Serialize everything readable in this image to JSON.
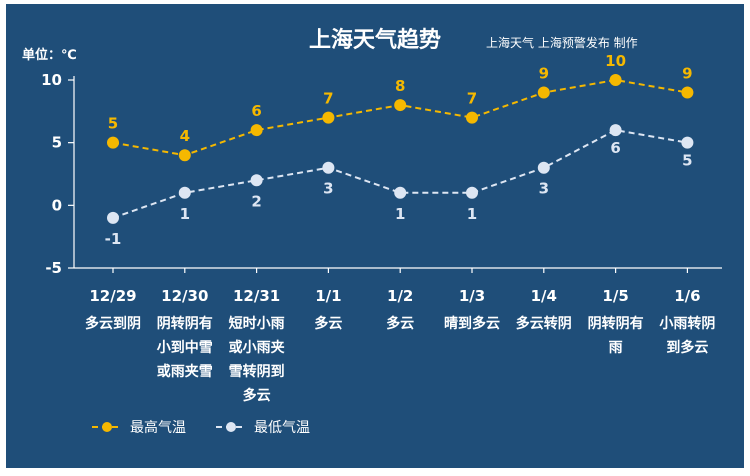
{
  "header": {
    "title": "上海天气趋势",
    "credit": "上海天气  上海预警发布 制作",
    "unit": "单位：℃"
  },
  "chart_data": {
    "type": "line",
    "title": "上海天气趋势",
    "ylabel": "单位：℃",
    "ylim": [
      -5,
      10
    ],
    "yticks": [
      -5,
      0,
      5,
      10
    ],
    "categories": [
      "12/29",
      "12/30",
      "12/31",
      "1/1",
      "1/2",
      "1/3",
      "1/4",
      "1/5",
      "1/6"
    ],
    "weather": [
      [
        "多云到阴"
      ],
      [
        "阴转阴有",
        "小到中雪",
        "或雨夹雪"
      ],
      [
        "短时小雨",
        "或小雨夹",
        "雪转阴到",
        "多云"
      ],
      [
        "多云"
      ],
      [
        "多云"
      ],
      [
        "晴到多云"
      ],
      [
        "多云转阴"
      ],
      [
        "阴转阴有",
        "雨"
      ],
      [
        "小雨转阴",
        "到多云"
      ]
    ],
    "series": [
      {
        "name": "最高气温",
        "color": "#f5b800",
        "values": [
          5,
          4,
          6,
          7,
          8,
          7,
          9,
          10,
          9
        ]
      },
      {
        "name": "最低气温",
        "color": "#dde6f3",
        "values": [
          -1,
          1,
          2,
          3,
          1,
          1,
          3,
          6,
          5
        ]
      }
    ],
    "grid": false,
    "legend": "bottom-left"
  }
}
